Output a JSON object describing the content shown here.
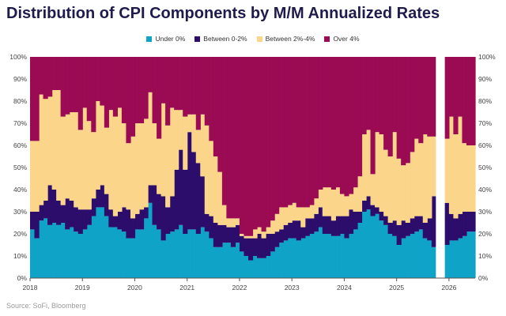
{
  "title": "Distribution of CPI Components by M/M Annualized Rates",
  "source": "Source: SoFi, Bloomberg",
  "chart_data": {
    "type": "area",
    "stacked": true,
    "step": true,
    "title": "Distribution of CPI Components by M/M Annualized Rates",
    "xlabel": "",
    "ylabel": "",
    "ylim": [
      0,
      100
    ],
    "y_ticks": [
      "0%",
      "10%",
      "20%",
      "30%",
      "40%",
      "50%",
      "60%",
      "70%",
      "80%",
      "90%",
      "100%"
    ],
    "x_ticks": [
      "2018",
      "2019",
      "2020",
      "2021",
      "2022",
      "2023",
      "2024",
      "2025",
      "2026"
    ],
    "x_range": [
      2018.0,
      2026.5
    ],
    "gap": [
      2025.75,
      2025.92
    ],
    "legend_position": "top-center",
    "grid": false,
    "x": [
      2018.0,
      2018.083,
      2018.167,
      2018.25,
      2018.333,
      2018.417,
      2018.5,
      2018.583,
      2018.667,
      2018.75,
      2018.833,
      2018.917,
      2019.0,
      2019.083,
      2019.167,
      2019.25,
      2019.333,
      2019.417,
      2019.5,
      2019.583,
      2019.667,
      2019.75,
      2019.833,
      2019.917,
      2020.0,
      2020.083,
      2020.167,
      2020.25,
      2020.333,
      2020.417,
      2020.5,
      2020.583,
      2020.667,
      2020.75,
      2020.833,
      2020.917,
      2021.0,
      2021.083,
      2021.167,
      2021.25,
      2021.333,
      2021.417,
      2021.5,
      2021.583,
      2021.667,
      2021.75,
      2021.833,
      2021.917,
      2022.0,
      2022.083,
      2022.167,
      2022.25,
      2022.333,
      2022.417,
      2022.5,
      2022.583,
      2022.667,
      2022.75,
      2022.833,
      2022.917,
      2023.0,
      2023.083,
      2023.167,
      2023.25,
      2023.333,
      2023.417,
      2023.5,
      2023.583,
      2023.667,
      2023.75,
      2023.833,
      2023.917,
      2024.0,
      2024.083,
      2024.167,
      2024.25,
      2024.333,
      2024.417,
      2024.5,
      2024.583,
      2024.667,
      2024.75,
      2024.833,
      2024.917,
      2025.0,
      2025.083,
      2025.167,
      2025.25,
      2025.333,
      2025.417,
      2025.5,
      2025.583,
      2025.667,
      2025.92,
      2026.0,
      2026.083,
      2026.167,
      2026.25,
      2026.333
    ],
    "series": [
      {
        "name": "Under 0%",
        "color": "#0fa3c8",
        "values": [
          22,
          18,
          26,
          27,
          24,
          25,
          24,
          25,
          22,
          23,
          21,
          20,
          22,
          24,
          28,
          32,
          32,
          28,
          23,
          23,
          22,
          21,
          18,
          18,
          22,
          22,
          27,
          34,
          24,
          22,
          17,
          20,
          21,
          22,
          24,
          20,
          22,
          22,
          20,
          23,
          21,
          18,
          14,
          14,
          16,
          16,
          14,
          16,
          12,
          10,
          8,
          10,
          9,
          9,
          10,
          12,
          14,
          16,
          17,
          18,
          18,
          17,
          18,
          19,
          20,
          21,
          23,
          20,
          20,
          19,
          19,
          20,
          18,
          20,
          22,
          25,
          30,
          31,
          28,
          29,
          26,
          24,
          20,
          19,
          15,
          18,
          19,
          20,
          21,
          22,
          18,
          17,
          14,
          15,
          17,
          17,
          18,
          19,
          21
        ]
      },
      {
        "name": "Between 0-2%",
        "color": "#2d0d6b",
        "values": [
          8,
          12,
          7,
          8,
          18,
          15,
          11,
          8,
          14,
          12,
          11,
          11,
          9,
          7,
          8,
          8,
          10,
          10,
          8,
          5,
          8,
          11,
          13,
          9,
          7,
          9,
          5,
          8,
          18,
          16,
          20,
          12,
          16,
          27,
          34,
          29,
          44,
          35,
          32,
          23,
          8,
          10,
          11,
          10,
          8,
          7,
          9,
          8,
          7,
          8,
          10,
          8,
          11,
          9,
          10,
          8,
          7,
          6,
          7,
          7,
          8,
          9,
          5,
          8,
          7,
          8,
          9,
          8,
          8,
          7,
          9,
          8,
          10,
          11,
          8,
          5,
          5,
          6,
          5,
          3,
          4,
          4,
          5,
          7,
          9,
          8,
          6,
          7,
          7,
          6,
          7,
          10,
          23,
          19,
          12,
          10,
          11,
          11,
          9
        ]
      },
      {
        "name": "Between 2%-4%",
        "color": "#fad58a",
        "values": [
          32,
          32,
          50,
          46,
          40,
          45,
          50,
          40,
          38,
          40,
          43,
          36,
          46,
          40,
          30,
          40,
          36,
          30,
          45,
          45,
          47,
          38,
          30,
          37,
          41,
          39,
          40,
          42,
          28,
          25,
          42,
          37,
          40,
          27,
          18,
          24,
          8,
          17,
          15,
          28,
          40,
          34,
          30,
          24,
          9,
          4,
          4,
          3,
          1,
          1,
          1,
          4,
          3,
          3,
          3,
          6,
          8,
          10,
          8,
          8,
          8,
          6,
          9,
          5,
          6,
          7,
          8,
          13,
          13,
          14,
          13,
          10,
          9,
          7,
          11,
          16,
          30,
          30,
          14,
          34,
          35,
          30,
          30,
          40,
          30,
          25,
          27,
          30,
          35,
          33,
          40,
          37,
          27,
          29,
          44,
          38,
          44,
          31,
          30
        ]
      },
      {
        "name": "Over 4%",
        "color": "#9a0b54",
        "values": [
          38,
          38,
          17,
          19,
          18,
          15,
          15,
          27,
          26,
          25,
          25,
          33,
          23,
          29,
          34,
          20,
          22,
          32,
          24,
          27,
          23,
          30,
          39,
          36,
          30,
          30,
          28,
          16,
          30,
          37,
          21,
          31,
          23,
          24,
          24,
          27,
          26,
          26,
          33,
          26,
          31,
          38,
          45,
          52,
          67,
          73,
          73,
          73,
          80,
          81,
          81,
          78,
          77,
          79,
          77,
          74,
          71,
          68,
          68,
          67,
          66,
          68,
          68,
          68,
          67,
          64,
          60,
          59,
          59,
          60,
          59,
          62,
          63,
          62,
          59,
          54,
          35,
          33,
          53,
          34,
          35,
          42,
          45,
          34,
          46,
          49,
          48,
          43,
          37,
          39,
          35,
          36,
          36,
          37,
          27,
          35,
          27,
          39,
          40
        ]
      }
    ]
  }
}
